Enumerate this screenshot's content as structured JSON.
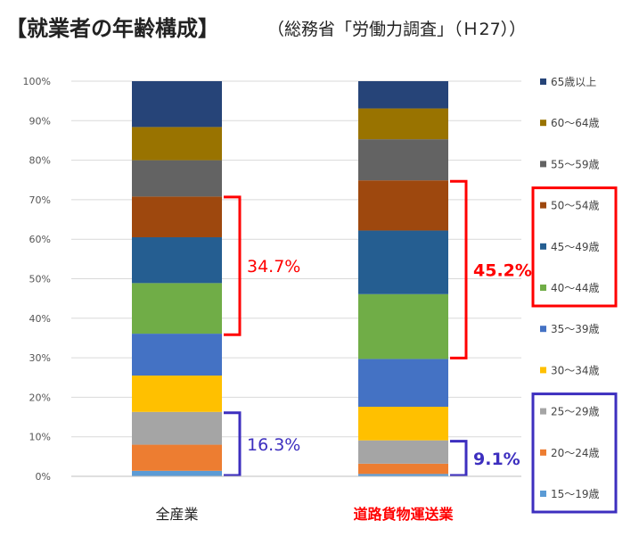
{
  "title": "【就業者の年齢構成】",
  "subtitle": "（総務省「労働力調査」（Ｈ27））",
  "colors": {
    "15-19": "#5b9bd5",
    "20-24": "#ed7d31",
    "25-29": "#a5a5a5",
    "30-34": "#ffc000",
    "35-39": "#4472c4",
    "40-44": "#70ad47",
    "45-49": "#255e91",
    "50-54": "#9e480e",
    "55-59": "#636363",
    "60-64": "#997300",
    "65+": "#264478",
    "red": "#ff0000",
    "blue": "#3d2fbf"
  },
  "chart_data": {
    "type": "bar",
    "stacked": "percent",
    "categories": [
      "全産業",
      "道路貨物運送業"
    ],
    "category_colors": [
      "#222222",
      "#ff0000"
    ],
    "ylim": [
      0,
      100
    ],
    "yticks": [
      "0%",
      "10%",
      "20%",
      "30%",
      "40%",
      "50%",
      "60%",
      "70%",
      "80%",
      "90%",
      "100%"
    ],
    "series": [
      {
        "name": "15～19歳",
        "key": "15-19",
        "values": [
          1.4,
          0.6
        ]
      },
      {
        "name": "20～24歳",
        "key": "20-24",
        "values": [
          6.6,
          2.6
        ]
      },
      {
        "name": "25～29歳",
        "key": "25-29",
        "values": [
          8.3,
          5.9
        ]
      },
      {
        "name": "30～34歳",
        "key": "30-34",
        "values": [
          9.2,
          8.5
        ]
      },
      {
        "name": "35～39歳",
        "key": "35-39",
        "values": [
          10.6,
          12.1
        ]
      },
      {
        "name": "40～44歳",
        "key": "40-44",
        "values": [
          12.8,
          16.4
        ]
      },
      {
        "name": "45～49歳",
        "key": "45-49",
        "values": [
          11.6,
          16.1
        ]
      },
      {
        "name": "50～54歳",
        "key": "50-54",
        "values": [
          10.3,
          12.7
        ]
      },
      {
        "name": "55～59歳",
        "key": "55-59",
        "values": [
          9.2,
          10.4
        ]
      },
      {
        "name": "60～64歳",
        "key": "60-64",
        "values": [
          8.4,
          7.8
        ]
      },
      {
        "name": "65歳以上",
        "key": "65+",
        "values": [
          11.6,
          6.9
        ]
      }
    ],
    "annotations": [
      {
        "text": "34.7%",
        "category": 0,
        "from": 35.6,
        "to": 70.9,
        "color": "red",
        "bold": false
      },
      {
        "text": "16.3%",
        "category": 0,
        "from": 0,
        "to": 16.3,
        "color": "blue",
        "bold": false
      },
      {
        "text": "45.2%",
        "category": 1,
        "from": 29.7,
        "to": 74.9,
        "color": "red",
        "bold": true
      },
      {
        "text": "9.1%",
        "category": 1,
        "from": 0,
        "to": 9.1,
        "color": "blue",
        "bold": true
      }
    ],
    "legend": {
      "placement": "right",
      "order": [
        "65歳以上",
        "60～64歳",
        "55～59歳",
        "50～54歳",
        "45～49歳",
        "40～44歳",
        "35～39歳",
        "30～34歳",
        "25～29歳",
        "20～24歳",
        "15～19歳"
      ],
      "highlight_groups": [
        {
          "items": [
            "50～54歳",
            "45～49歳",
            "40～44歳"
          ],
          "color": "red"
        },
        {
          "items": [
            "25～29歳",
            "20～24歳",
            "15～19歳"
          ],
          "color": "blue"
        }
      ]
    }
  }
}
